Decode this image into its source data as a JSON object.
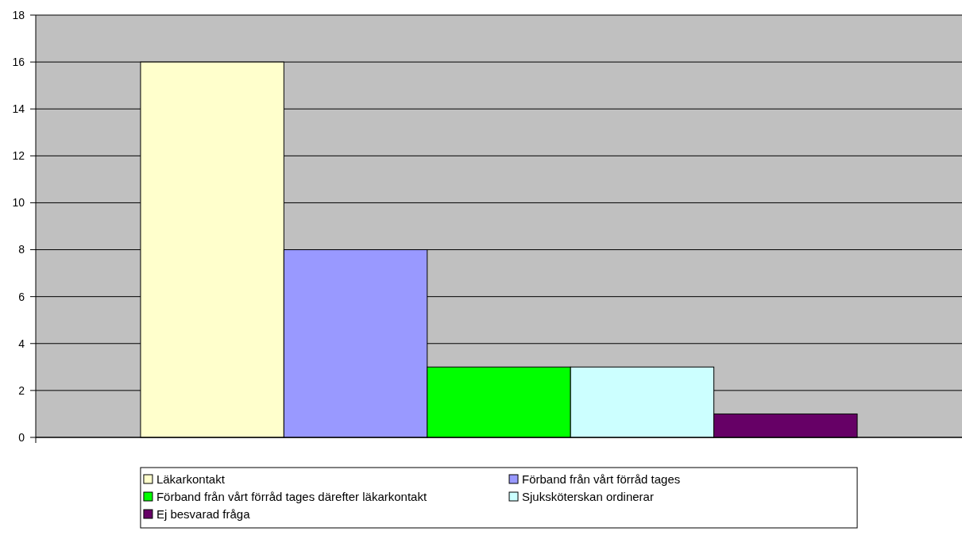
{
  "chart_data": {
    "type": "bar",
    "categories": [
      null
    ],
    "series": [
      {
        "name": "Läkarkontakt",
        "color": "#ffffcc",
        "values": [
          16
        ]
      },
      {
        "name": "Förband från vårt förråd tages",
        "color": "#9999ff",
        "values": [
          8
        ]
      },
      {
        "name": "Förband från vårt förråd tages därefter läkarkontakt",
        "color": "#00ff00",
        "values": [
          3
        ]
      },
      {
        "name": "Sjuksköterskan ordinerar",
        "color": "#ccffff",
        "values": [
          3
        ]
      },
      {
        "name": "Ej besvarad fråga",
        "color": "#660066",
        "values": [
          1
        ]
      }
    ],
    "ylim": [
      0,
      18
    ],
    "yticks": [
      0,
      2,
      4,
      6,
      8,
      10,
      12,
      14,
      16,
      18
    ],
    "grid": "y",
    "legend": "bottom"
  }
}
